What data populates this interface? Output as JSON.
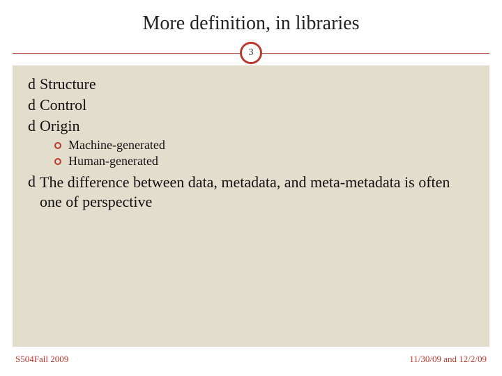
{
  "colors": {
    "accent": "#b9392e",
    "content_bg": "#e3ddce",
    "page_bg": "#ffffff",
    "text": "#111111"
  },
  "typography": {
    "title_fontsize": 28,
    "bullet_fontsize": 22,
    "sub_fontsize": 18,
    "footer_fontsize": 13,
    "font_family": "Georgia, serif"
  },
  "slide": {
    "title": "More definition, in libraries",
    "number": "3",
    "bullets": [
      {
        "glyph": "d",
        "text": "Structure"
      },
      {
        "glyph": "d",
        "text": "Control"
      },
      {
        "glyph": "d",
        "text": "Origin"
      }
    ],
    "sub_bullets": [
      {
        "text": "Machine-generated"
      },
      {
        "text": "Human-generated"
      }
    ],
    "paragraph": {
      "glyph": "d",
      "text": "The difference between data, metadata, and meta-metadata is often one of perspective"
    }
  },
  "footer": {
    "left": "S504Fall 2009",
    "right": "11/30/09 and 12/2/09"
  }
}
